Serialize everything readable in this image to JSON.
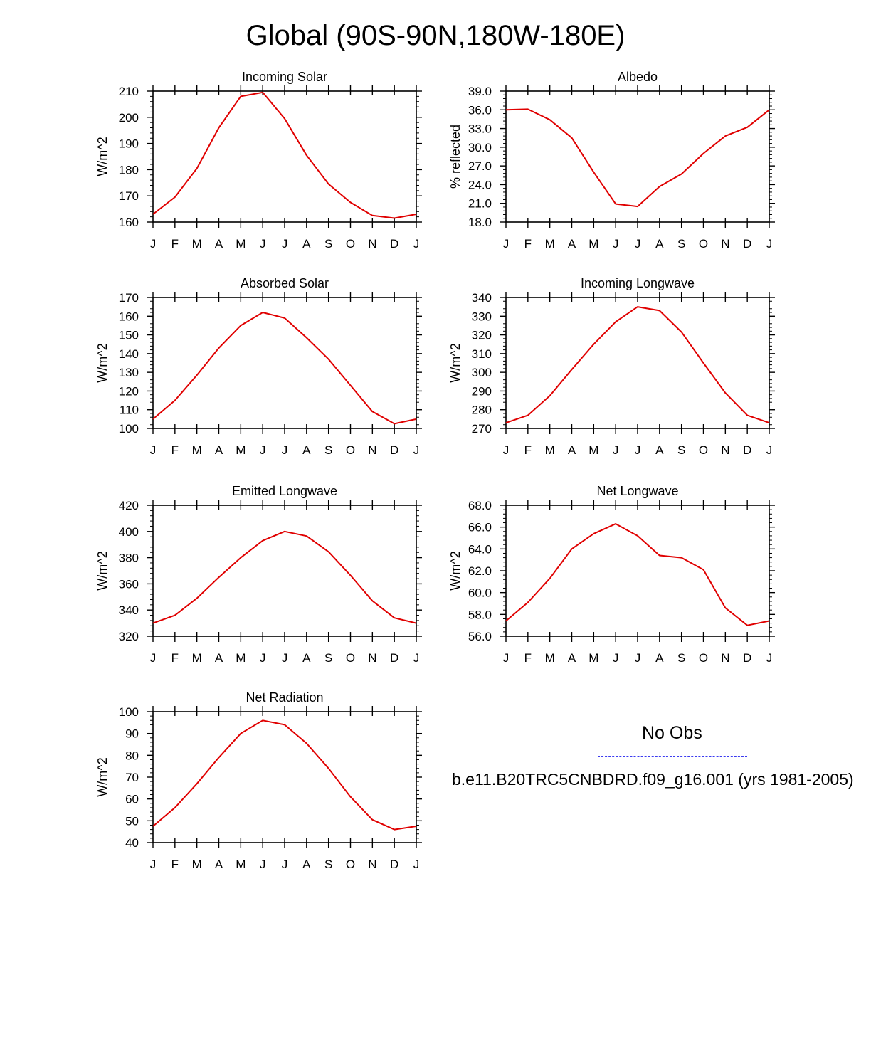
{
  "page": {
    "title": "Global (90S-90N,180W-180E)"
  },
  "legend": {
    "obs_label": "No Obs",
    "model_label": "b.e11.B20TRC5CNBDRD.f09_g16.001 (yrs 1981-2005)",
    "obs_color": "#3b3bf0",
    "model_color": "#e00000"
  },
  "chart_data": [
    {
      "type": "line",
      "title": "Incoming Solar",
      "ylabel": "W/m^2",
      "x": [
        "J",
        "F",
        "M",
        "A",
        "M",
        "J",
        "J",
        "A",
        "S",
        "O",
        "N",
        "D",
        "J"
      ],
      "ylim": [
        160,
        210
      ],
      "yticks": [
        "160",
        "170",
        "180",
        "190",
        "200",
        "210"
      ],
      "series": [
        {
          "values": [
            163,
            169.5,
            180.5,
            196,
            208,
            209.5,
            199.5,
            185.5,
            174.5,
            167.5,
            162.5,
            161.5,
            163
          ]
        }
      ]
    },
    {
      "type": "line",
      "title": "Albedo",
      "ylabel": "% reflected",
      "x": [
        "J",
        "F",
        "M",
        "A",
        "M",
        "J",
        "J",
        "A",
        "S",
        "O",
        "N",
        "D",
        "J"
      ],
      "ylim": [
        18,
        39
      ],
      "yticks": [
        "18.0",
        "21.0",
        "24.0",
        "27.0",
        "30.0",
        "33.0",
        "36.0",
        "39.0"
      ],
      "series": [
        {
          "values": [
            36.0,
            36.1,
            34.4,
            31.5,
            26.0,
            20.9,
            20.5,
            23.7,
            25.7,
            29.0,
            31.8,
            33.2,
            36.0
          ]
        }
      ]
    },
    {
      "type": "line",
      "title": "Absorbed Solar",
      "ylabel": "W/m^2",
      "x": [
        "J",
        "F",
        "M",
        "A",
        "M",
        "J",
        "J",
        "A",
        "S",
        "O",
        "N",
        "D",
        "J"
      ],
      "ylim": [
        100,
        170
      ],
      "yticks": [
        "100",
        "110",
        "120",
        "130",
        "140",
        "150",
        "160",
        "170"
      ],
      "series": [
        {
          "values": [
            105,
            115,
            128.5,
            143,
            155,
            162,
            159,
            148.5,
            137,
            123,
            109,
            102.5,
            105
          ]
        }
      ]
    },
    {
      "type": "line",
      "title": "Incoming Longwave",
      "ylabel": "W/m^2",
      "x": [
        "J",
        "F",
        "M",
        "A",
        "M",
        "J",
        "J",
        "A",
        "S",
        "O",
        "N",
        "D",
        "J"
      ],
      "ylim": [
        270,
        340
      ],
      "yticks": [
        "270",
        "280",
        "290",
        "300",
        "310",
        "320",
        "330",
        "340"
      ],
      "series": [
        {
          "values": [
            273,
            277,
            287.5,
            301.5,
            315,
            327,
            335,
            333,
            321.5,
            305,
            289,
            277,
            273
          ]
        }
      ]
    },
    {
      "type": "line",
      "title": "Emitted Longwave",
      "ylabel": "W/m^2",
      "x": [
        "J",
        "F",
        "M",
        "A",
        "M",
        "J",
        "J",
        "A",
        "S",
        "O",
        "N",
        "D",
        "J"
      ],
      "ylim": [
        320,
        420
      ],
      "yticks": [
        "320",
        "340",
        "360",
        "380",
        "400",
        "420"
      ],
      "series": [
        {
          "values": [
            330,
            336,
            349,
            365,
            380,
            393,
            400,
            396.5,
            384.5,
            366.5,
            347,
            334,
            330
          ]
        }
      ]
    },
    {
      "type": "line",
      "title": "Net Longwave",
      "ylabel": "W/m^2",
      "x": [
        "J",
        "F",
        "M",
        "A",
        "M",
        "J",
        "J",
        "A",
        "S",
        "O",
        "N",
        "D",
        "J"
      ],
      "ylim": [
        56,
        68
      ],
      "yticks": [
        "56.0",
        "58.0",
        "60.0",
        "62.0",
        "64.0",
        "66.0",
        "68.0"
      ],
      "series": [
        {
          "values": [
            57.4,
            59.1,
            61.3,
            64.0,
            65.4,
            66.3,
            65.2,
            63.4,
            63.2,
            62.1,
            58.6,
            57.0,
            57.4
          ]
        }
      ]
    },
    {
      "type": "line",
      "title": "Net Radiation",
      "ylabel": "W/m^2",
      "x": [
        "J",
        "F",
        "M",
        "A",
        "M",
        "J",
        "J",
        "A",
        "S",
        "O",
        "N",
        "D",
        "J"
      ],
      "ylim": [
        40,
        100
      ],
      "yticks": [
        "40",
        "50",
        "60",
        "70",
        "80",
        "90",
        "100"
      ],
      "series": [
        {
          "values": [
            47.5,
            56,
            67,
            79,
            90,
            96,
            94,
            85.5,
            74,
            61,
            50.5,
            46,
            47.5
          ]
        }
      ]
    }
  ]
}
